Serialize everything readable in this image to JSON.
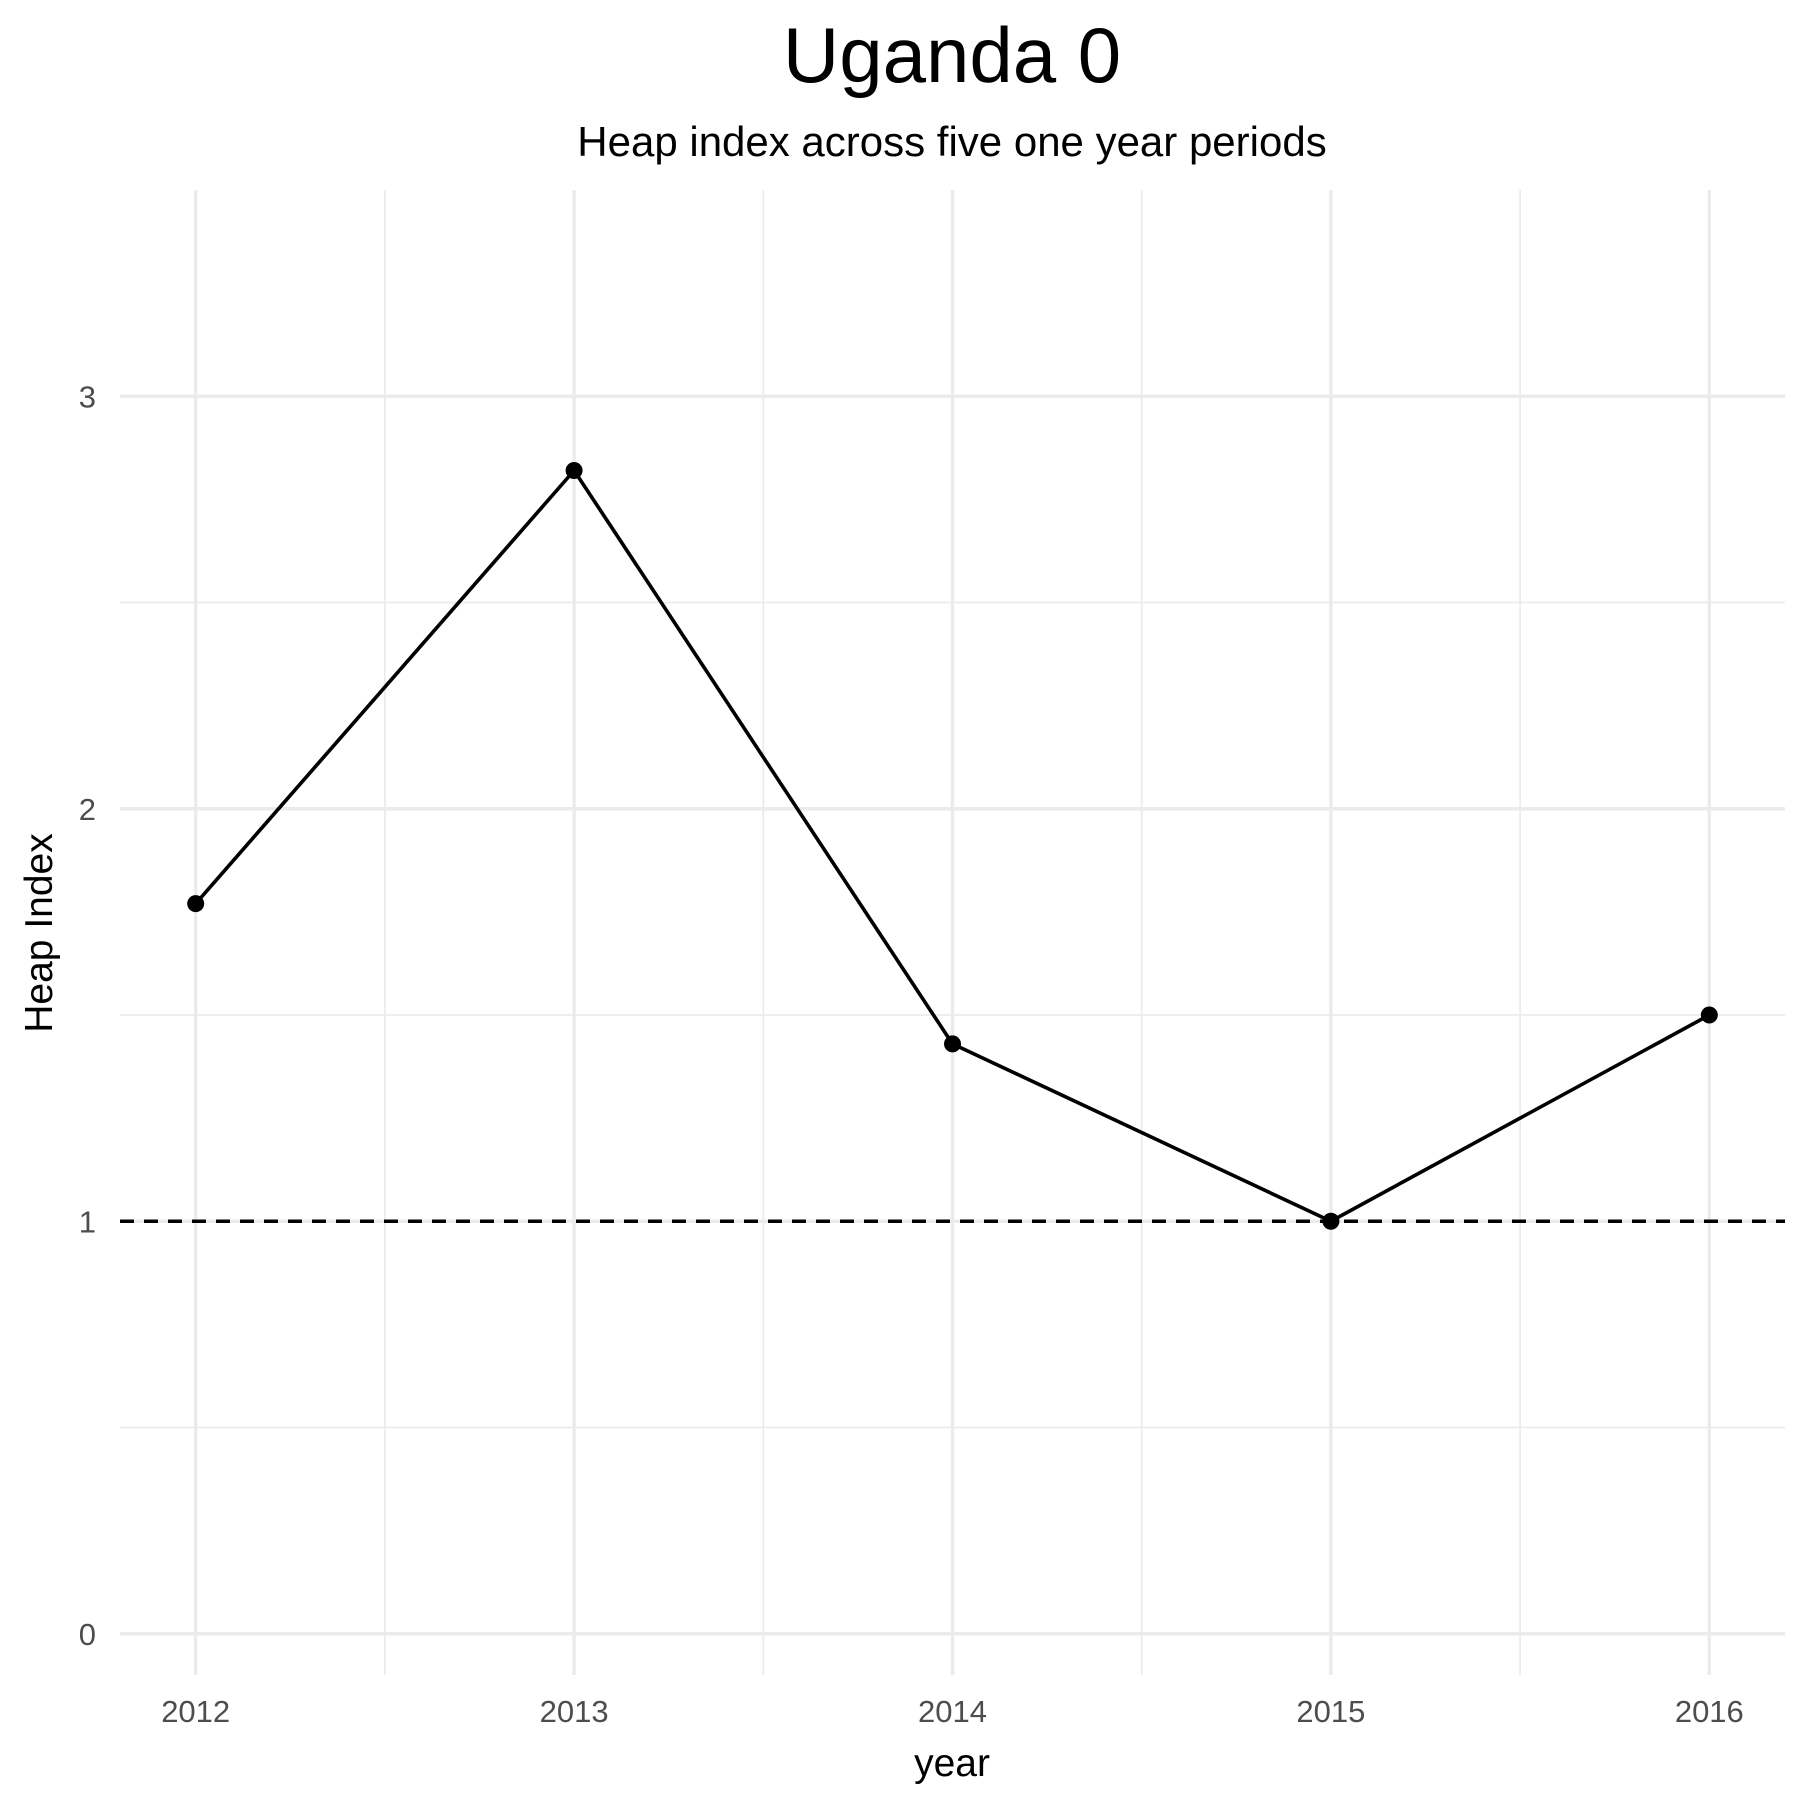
{
  "chart_data": {
    "type": "line",
    "title": "Uganda 0",
    "subtitle": "Heap index across five one year periods",
    "xlabel": "year",
    "ylabel": "Heap Index",
    "x": [
      2012,
      2013,
      2014,
      2015,
      2016
    ],
    "series": [
      {
        "values": [
          1.77,
          2.82,
          1.43,
          1.0,
          1.5
        ]
      }
    ],
    "reference_line": {
      "y": 1,
      "style": "dashed",
      "color": "#000000"
    },
    "xlim": [
      2011.8,
      2016.2
    ],
    "ylim": [
      -0.1,
      3.5
    ],
    "x_ticks": [
      "2012",
      "2013",
      "2014",
      "2015",
      "2016"
    ],
    "y_ticks": [
      "0",
      "1",
      "2",
      "3"
    ],
    "grid": true,
    "legend": "none",
    "colors": {
      "line": "#000000",
      "grid": "#ebebeb",
      "tick_text": "#4d4d4d",
      "background": "#ffffff"
    }
  }
}
